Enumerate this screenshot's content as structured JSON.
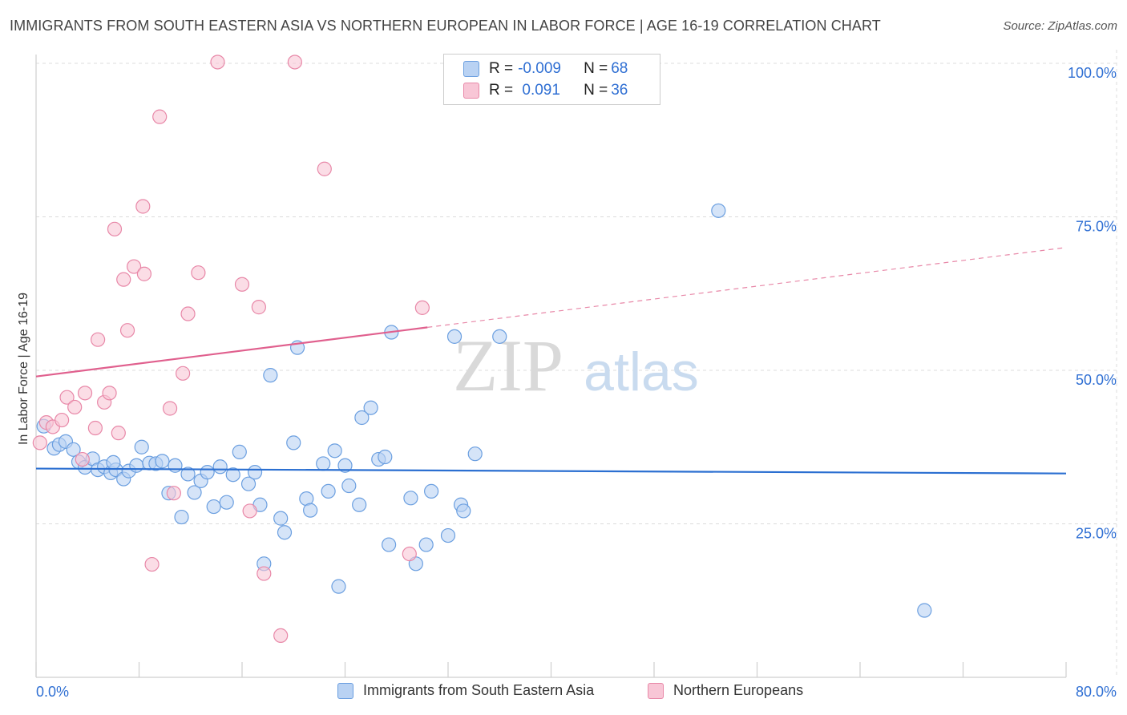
{
  "header": {
    "title": "IMMIGRANTS FROM SOUTH EASTERN ASIA VS NORTHERN EUROPEAN IN LABOR FORCE | AGE 16-19 CORRELATION CHART",
    "source": "Source: ZipAtlas.com"
  },
  "watermark": {
    "zip": "ZIP",
    "atlas": "atlas"
  },
  "legend": {
    "rows": [
      {
        "r_label": "R = ",
        "r_value": "-0.009",
        "n_label": "N = ",
        "n_value": "68"
      },
      {
        "r_label": "R = ",
        "r_value": " 0.091",
        "n_label": "N = ",
        "n_value": "36"
      }
    ]
  },
  "chart_data": {
    "type": "scatter",
    "title": "IMMIGRANTS FROM SOUTH EASTERN ASIA VS NORTHERN EUROPEAN IN LABOR FORCE | AGE 16-19 CORRELATION CHART",
    "xlabel": "",
    "ylabel": "In Labor Force | Age 16-19",
    "xlim": [
      0,
      80
    ],
    "ylim": [
      0,
      105
    ],
    "x_tick_labels": [
      "0.0%",
      "80.0%"
    ],
    "y_ticks": [
      25,
      50,
      75,
      100
    ],
    "y_tick_labels": [
      "25.0%",
      "50.0%",
      "75.0%",
      "100.0%"
    ],
    "grid": true,
    "legend_position": "top-center",
    "series": [
      {
        "name": "Immigrants from South Eastern Asia",
        "color": "#6b9fe0",
        "fill": "#b9d2f3",
        "r": -0.009,
        "n": 68,
        "trend": {
          "x": [
            0,
            80
          ],
          "y": [
            34.0,
            33.2
          ],
          "style": "solid"
        },
        "points": [
          [
            0.6,
            40.9
          ],
          [
            1.4,
            37.3
          ],
          [
            1.8,
            37.9
          ],
          [
            2.3,
            38.4
          ],
          [
            2.9,
            37.1
          ],
          [
            3.3,
            35.1
          ],
          [
            3.8,
            34.2
          ],
          [
            4.4,
            35.6
          ],
          [
            4.8,
            33.8
          ],
          [
            5.3,
            34.3
          ],
          [
            5.8,
            33.3
          ],
          [
            6.2,
            33.8
          ],
          [
            6.8,
            32.3
          ],
          [
            7.2,
            33.6
          ],
          [
            7.8,
            34.5
          ],
          [
            8.2,
            37.5
          ],
          [
            8.8,
            34.9
          ],
          [
            9.3,
            34.8
          ],
          [
            9.8,
            35.2
          ],
          [
            10.3,
            30.0
          ],
          [
            10.8,
            34.5
          ],
          [
            11.3,
            26.1
          ],
          [
            11.8,
            33.1
          ],
          [
            12.3,
            30.1
          ],
          [
            12.8,
            32.0
          ],
          [
            13.3,
            33.4
          ],
          [
            13.8,
            27.8
          ],
          [
            14.3,
            34.3
          ],
          [
            14.8,
            28.5
          ],
          [
            15.3,
            33.0
          ],
          [
            15.8,
            36.7
          ],
          [
            16.5,
            31.5
          ],
          [
            17.0,
            33.4
          ],
          [
            17.4,
            28.1
          ],
          [
            17.7,
            18.5
          ],
          [
            18.2,
            49.2
          ],
          [
            19.0,
            25.9
          ],
          [
            19.3,
            23.6
          ],
          [
            20.0,
            38.2
          ],
          [
            20.3,
            53.7
          ],
          [
            21.0,
            29.1
          ],
          [
            21.3,
            27.2
          ],
          [
            22.3,
            34.8
          ],
          [
            22.7,
            30.3
          ],
          [
            23.2,
            36.9
          ],
          [
            23.5,
            14.8
          ],
          [
            24.0,
            34.5
          ],
          [
            24.3,
            31.2
          ],
          [
            25.1,
            28.1
          ],
          [
            25.3,
            42.3
          ],
          [
            26.0,
            43.9
          ],
          [
            26.6,
            35.5
          ],
          [
            27.1,
            35.9
          ],
          [
            27.4,
            21.6
          ],
          [
            29.1,
            29.2
          ],
          [
            29.5,
            18.5
          ],
          [
            30.3,
            21.6
          ],
          [
            30.7,
            30.3
          ],
          [
            32.0,
            23.1
          ],
          [
            32.5,
            55.5
          ],
          [
            33.0,
            28.1
          ],
          [
            33.2,
            27.1
          ],
          [
            34.1,
            36.4
          ],
          [
            36.0,
            55.5
          ],
          [
            53.0,
            76.0
          ],
          [
            69.0,
            10.9
          ],
          [
            27.6,
            56.2
          ],
          [
            6.0,
            35.0
          ]
        ]
      },
      {
        "name": "Northern Europeans",
        "color": "#e888a8",
        "fill": "#f8c6d6",
        "r": 0.091,
        "n": 36,
        "trend": {
          "x": [
            0,
            30.4,
            80
          ],
          "y": [
            49.0,
            57.0,
            70.0
          ],
          "solid_until": 30.4
        },
        "points": [
          [
            0.3,
            38.2
          ],
          [
            0.8,
            41.5
          ],
          [
            1.3,
            40.8
          ],
          [
            2.0,
            41.9
          ],
          [
            2.4,
            45.6
          ],
          [
            3.0,
            44.0
          ],
          [
            3.6,
            35.5
          ],
          [
            3.8,
            46.3
          ],
          [
            4.6,
            40.6
          ],
          [
            4.8,
            55.0
          ],
          [
            5.3,
            44.8
          ],
          [
            5.7,
            46.3
          ],
          [
            6.1,
            73.0
          ],
          [
            6.4,
            39.8
          ],
          [
            6.8,
            64.8
          ],
          [
            7.1,
            56.5
          ],
          [
            7.6,
            66.9
          ],
          [
            8.3,
            76.7
          ],
          [
            8.4,
            65.7
          ],
          [
            9.0,
            18.4
          ],
          [
            9.6,
            91.3
          ],
          [
            10.4,
            43.8
          ],
          [
            10.7,
            30.0
          ],
          [
            11.4,
            49.5
          ],
          [
            11.8,
            59.2
          ],
          [
            12.6,
            65.9
          ],
          [
            14.1,
            100.2
          ],
          [
            16.0,
            64.0
          ],
          [
            16.6,
            27.1
          ],
          [
            17.3,
            60.3
          ],
          [
            17.7,
            16.9
          ],
          [
            19.0,
            6.8
          ],
          [
            20.1,
            100.2
          ],
          [
            22.4,
            82.8
          ],
          [
            29.0,
            20.1
          ],
          [
            30.0,
            60.2
          ]
        ]
      }
    ]
  }
}
